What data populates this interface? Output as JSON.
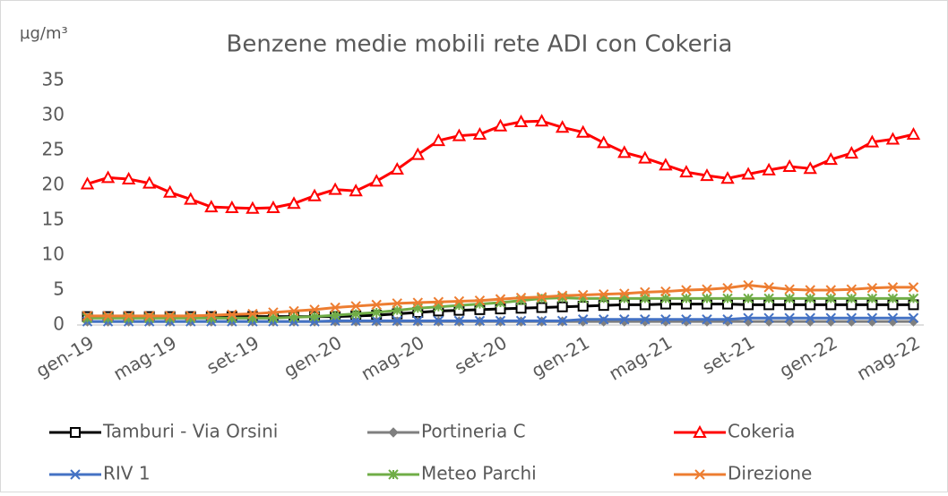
{
  "chart_data": {
    "type": "line",
    "title": "Benzene medie mobili rete ADI con Cokeria",
    "y_label": "µg/m³",
    "categories": [
      "gen-19",
      null,
      null,
      null,
      "mag-19",
      null,
      null,
      null,
      "set-19",
      null,
      null,
      null,
      "gen-20",
      null,
      null,
      null,
      "mag-20",
      null,
      null,
      null,
      "set-20",
      null,
      null,
      null,
      "gen-21",
      null,
      null,
      null,
      "mag-21",
      null,
      null,
      null,
      "set-21",
      null,
      null,
      null,
      "gen-22",
      null,
      null,
      null,
      "mag-22"
    ],
    "ylim": [
      0,
      35
    ],
    "yticks": [
      0,
      5,
      10,
      15,
      20,
      25,
      30,
      35
    ],
    "grid": false,
    "legend": "bottom",
    "series": [
      {
        "name": "Tamburi - Via Orsini",
        "color": "#000000",
        "marker": "square",
        "values": [
          1.2,
          1.2,
          1.2,
          1.2,
          1.2,
          1.2,
          1.2,
          1.2,
          1.2,
          1.2,
          1.2,
          1.2,
          1.2,
          1.3,
          1.4,
          1.6,
          1.8,
          2.0,
          2.1,
          2.2,
          2.3,
          2.4,
          2.5,
          2.6,
          2.7,
          2.8,
          2.9,
          2.9,
          3.0,
          3.0,
          3.0,
          3.0,
          2.9,
          2.9,
          2.9,
          2.9,
          2.9,
          2.9,
          2.9,
          2.9,
          2.9
        ]
      },
      {
        "name": "Portineria C",
        "color": "#7f7f7f",
        "marker": "diamond",
        "values": [
          0.5,
          0.5,
          0.5,
          0.5,
          0.5,
          0.5,
          0.5,
          0.5,
          0.5,
          0.5,
          0.5,
          0.5,
          0.5,
          0.5,
          0.5,
          0.5,
          0.5,
          0.5,
          0.5,
          0.5,
          0.5,
          0.5,
          0.5,
          0.5,
          0.5,
          0.5,
          0.5,
          0.5,
          0.5,
          0.5,
          0.5,
          0.5,
          0.5,
          0.5,
          0.5,
          0.5,
          0.5,
          0.5,
          0.5,
          0.5,
          0.5
        ]
      },
      {
        "name": "Cokeria",
        "color": "#ff0000",
        "marker": "triangle",
        "values": [
          20.2,
          21.1,
          20.9,
          20.3,
          19.0,
          18.0,
          16.9,
          16.8,
          16.7,
          16.8,
          17.4,
          18.5,
          19.4,
          19.2,
          20.6,
          22.3,
          24.4,
          26.4,
          27.1,
          27.3,
          28.5,
          29.1,
          29.2,
          28.3,
          27.6,
          26.1,
          24.7,
          23.9,
          22.9,
          21.9,
          21.4,
          21.0,
          21.6,
          22.2,
          22.7,
          22.4,
          23.7,
          24.6,
          26.2,
          26.6,
          27.3
        ]
      },
      {
        "name": "RIV 1",
        "color": "#4472c4",
        "marker": "x",
        "values": [
          0.5,
          0.5,
          0.5,
          0.5,
          0.5,
          0.5,
          0.5,
          0.5,
          0.5,
          0.5,
          0.5,
          0.5,
          0.6,
          0.6,
          0.6,
          0.6,
          0.6,
          0.6,
          0.6,
          0.6,
          0.6,
          0.6,
          0.6,
          0.6,
          0.8,
          0.8,
          0.8,
          0.8,
          0.8,
          0.8,
          0.8,
          0.8,
          1.0,
          1.0,
          1.0,
          1.0,
          1.0,
          1.0,
          1.0,
          1.0,
          1.0
        ]
      },
      {
        "name": "Meteo Parchi",
        "color": "#70ad47",
        "marker": "asterisk",
        "values": [
          1.0,
          1.0,
          1.0,
          1.0,
          1.0,
          1.0,
          1.0,
          1.0,
          1.0,
          1.0,
          1.1,
          1.2,
          1.4,
          1.6,
          1.8,
          2.1,
          2.4,
          2.6,
          2.8,
          3.0,
          3.2,
          3.5,
          3.8,
          3.9,
          3.8,
          3.8,
          3.8,
          3.8,
          3.8,
          3.8,
          3.8,
          3.8,
          3.8,
          3.8,
          3.8,
          3.8,
          3.8,
          3.8,
          3.8,
          3.8,
          3.8
        ]
      },
      {
        "name": "Direzione",
        "color": "#ed7d31",
        "marker": "x",
        "values": [
          1.3,
          1.3,
          1.3,
          1.3,
          1.3,
          1.3,
          1.4,
          1.5,
          1.6,
          1.8,
          2.0,
          2.2,
          2.5,
          2.7,
          2.9,
          3.1,
          3.2,
          3.3,
          3.4,
          3.5,
          3.7,
          3.9,
          4.0,
          4.2,
          4.3,
          4.4,
          4.5,
          4.7,
          4.8,
          5.0,
          5.1,
          5.3,
          5.7,
          5.4,
          5.1,
          5.0,
          5.0,
          5.1,
          5.3,
          5.4,
          5.4
        ]
      }
    ]
  }
}
